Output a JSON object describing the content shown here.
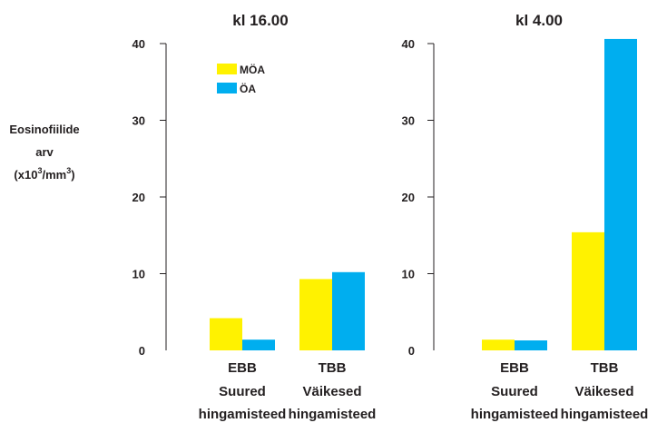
{
  "y_axis_label": {
    "line1": "Eosinofiilide",
    "line2": "arv",
    "line3_prefix": "(x10",
    "line3_sup1": "3",
    "line3_middle": "/mm",
    "line3_sup2": "3",
    "line3_suffix": ")"
  },
  "colors": {
    "MÖA": "#fff200",
    "ÖA": "#00aeef",
    "axis": "#231f20"
  },
  "chart_data": [
    {
      "type": "bar",
      "title": "kl  16.00",
      "categories": [
        [
          "EBB",
          "Suured",
          "hingamisteed"
        ],
        [
          "TBB",
          "Väikesed",
          "hingamisteed"
        ]
      ],
      "series": [
        {
          "name": "MÖA",
          "values": [
            4.2,
            9.3
          ]
        },
        {
          "name": "ÖA",
          "values": [
            1.4,
            10.2
          ]
        }
      ],
      "ylim": [
        0,
        40
      ],
      "yticks": [
        0,
        10,
        20,
        30,
        40
      ],
      "legend": {
        "position": "top-left",
        "entries": [
          "MÖA",
          "ÖA"
        ]
      },
      "grid": false
    },
    {
      "type": "bar",
      "title": "kl  4.00",
      "categories": [
        [
          "EBB",
          "Suured",
          "hingamisteed"
        ],
        [
          "TBB",
          "Väikesed",
          "hingamisteed"
        ]
      ],
      "series": [
        {
          "name": "MÖA",
          "values": [
            1.4,
            15.4
          ]
        },
        {
          "name": "ÖA",
          "values": [
            1.3,
            40.6
          ]
        }
      ],
      "ylim": [
        0,
        40
      ],
      "yticks": [
        0,
        10,
        20,
        30,
        40
      ],
      "grid": false
    }
  ]
}
